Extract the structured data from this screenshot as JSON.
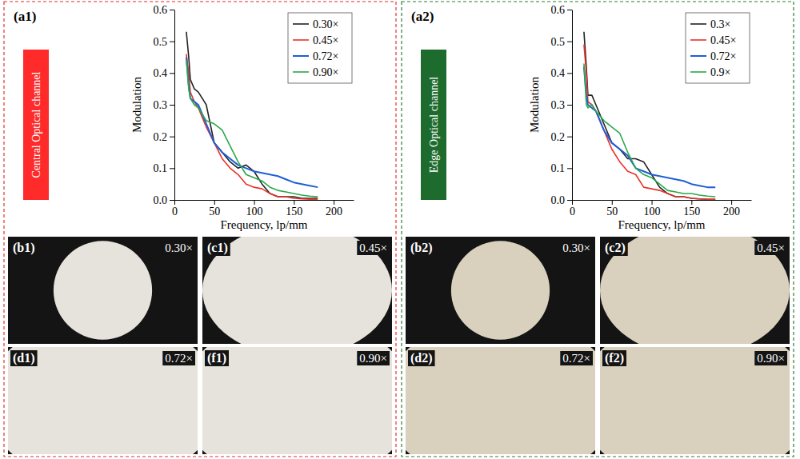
{
  "chart_data": [
    {
      "type": "line",
      "panel_label": "(a1)",
      "annotations": [
        "Central Optical channel"
      ],
      "x_label": "Frequency, lp/mm",
      "y_label": "Modulation",
      "x": [
        15,
        18,
        20,
        25,
        30,
        40,
        50,
        60,
        70,
        80,
        90,
        100,
        110,
        120,
        130,
        140,
        150,
        160,
        170,
        180
      ],
      "xlim": [
        0,
        225
      ],
      "xticks": [
        0,
        50,
        100,
        150,
        200
      ],
      "ylim": [
        0,
        0.6
      ],
      "yticks": [
        {
          "value": 0,
          "label": "0.0"
        },
        0.1,
        0.2,
        0.3,
        0.4,
        0.5,
        0.6
      ],
      "legend": "upper right",
      "series": [
        {
          "name": "0.30×",
          "color": "#222222",
          "values": [
            0.53,
            0.45,
            0.38,
            0.35,
            0.34,
            0.3,
            0.18,
            0.15,
            0.12,
            0.1,
            0.11,
            0.09,
            0.05,
            0.02,
            0.01,
            0.01,
            0.01,
            0.005,
            0.005,
            0.005
          ]
        },
        {
          "name": "0.45×",
          "color": "#e8322b",
          "values": [
            0.46,
            0.4,
            0.34,
            0.31,
            0.29,
            0.23,
            0.18,
            0.13,
            0.1,
            0.08,
            0.05,
            0.04,
            0.035,
            0.02,
            0.01,
            0.01,
            0.005,
            0.003,
            0.002,
            0.002
          ]
        },
        {
          "name": "0.72×",
          "color": "#1f5fd6",
          "values": [
            0.45,
            0.36,
            0.32,
            0.31,
            0.3,
            0.24,
            0.18,
            0.15,
            0.13,
            0.11,
            0.1,
            0.09,
            0.085,
            0.08,
            0.075,
            0.065,
            0.055,
            0.05,
            0.045,
            0.04
          ]
        },
        {
          "name": "0.90×",
          "color": "#2aa84a",
          "values": [
            0.44,
            0.35,
            0.32,
            0.3,
            0.29,
            0.25,
            0.24,
            0.22,
            0.17,
            0.12,
            0.08,
            0.07,
            0.06,
            0.04,
            0.03,
            0.025,
            0.02,
            0.015,
            0.012,
            0.01
          ]
        }
      ]
    },
    {
      "type": "line",
      "panel_label": "(a2)",
      "annotations": [
        "Edge Optical channel"
      ],
      "x_label": "Frequency, lp/mm",
      "y_label": "Modulation",
      "x": [
        15,
        18,
        20,
        25,
        30,
        40,
        50,
        60,
        70,
        80,
        90,
        100,
        110,
        120,
        130,
        140,
        150,
        160,
        170,
        180
      ],
      "xlim": [
        0,
        225
      ],
      "xticks": [
        0,
        50,
        100,
        150,
        200
      ],
      "ylim": [
        0,
        0.6
      ],
      "yticks": [
        {
          "value": 0,
          "label": "0.0"
        },
        0.1,
        0.2,
        0.3,
        0.4,
        0.5,
        0.6
      ],
      "legend": "upper right",
      "series": [
        {
          "name": "0.3×",
          "color": "#222222",
          "values": [
            0.53,
            0.42,
            0.33,
            0.33,
            0.3,
            0.24,
            0.18,
            0.16,
            0.13,
            0.13,
            0.12,
            0.08,
            0.04,
            0.02,
            0.01,
            0.01,
            0.005,
            0.003,
            0.002,
            0.002
          ]
        },
        {
          "name": "0.45×",
          "color": "#e8322b",
          "values": [
            0.49,
            0.4,
            0.31,
            0.3,
            0.28,
            0.22,
            0.16,
            0.12,
            0.09,
            0.08,
            0.04,
            0.035,
            0.03,
            0.02,
            0.01,
            0.01,
            0.005,
            0.003,
            0.002,
            0.002
          ]
        },
        {
          "name": "0.72×",
          "color": "#1f5fd6",
          "values": [
            0.42,
            0.33,
            0.3,
            0.29,
            0.28,
            0.22,
            0.18,
            0.16,
            0.14,
            0.1,
            0.09,
            0.08,
            0.075,
            0.07,
            0.065,
            0.06,
            0.05,
            0.045,
            0.04,
            0.04
          ]
        },
        {
          "name": "0.9×",
          "color": "#2aa84a",
          "values": [
            0.43,
            0.3,
            0.29,
            0.3,
            0.28,
            0.25,
            0.23,
            0.21,
            0.15,
            0.1,
            0.08,
            0.07,
            0.05,
            0.03,
            0.025,
            0.02,
            0.02,
            0.015,
            0.012,
            0.01
          ]
        }
      ]
    }
  ],
  "photos": [
    [
      {
        "panel_label": "(b1)",
        "magnification": "0.30×"
      },
      {
        "panel_label": "(c1)",
        "magnification": "0.45×"
      },
      {
        "panel_label": "(d1)",
        "magnification": "0.72×"
      },
      {
        "panel_label": "(f1)",
        "magnification": "0.90×"
      }
    ],
    [
      {
        "panel_label": "(b2)",
        "magnification": "0.30×"
      },
      {
        "panel_label": "(c2)",
        "magnification": "0.45×"
      },
      {
        "panel_label": "(d2)",
        "magnification": "0.72×"
      },
      {
        "panel_label": "(f2)",
        "magnification": "0.90×"
      }
    ]
  ]
}
